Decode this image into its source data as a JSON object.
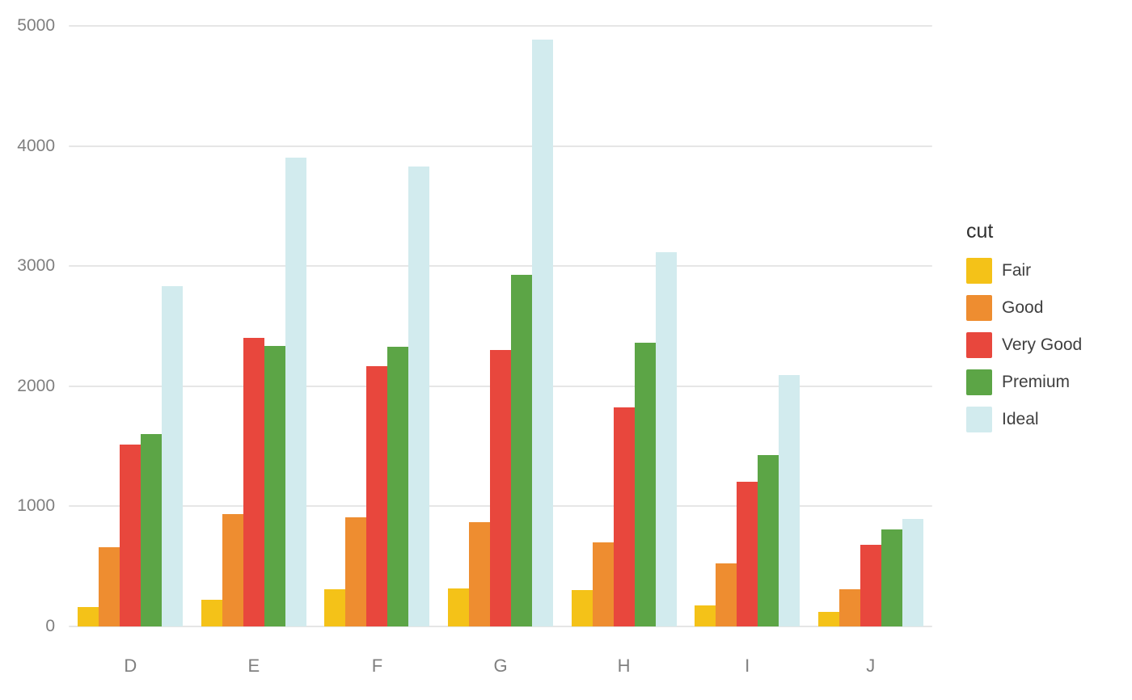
{
  "chart_data": {
    "type": "bar",
    "title": "",
    "xlabel": "",
    "ylabel": "",
    "categories": [
      "D",
      "E",
      "F",
      "G",
      "H",
      "I",
      "J"
    ],
    "series": [
      {
        "name": "Fair",
        "color": "#f4c218",
        "values": [
          163,
          224,
          312,
          314,
          303,
          175,
          119
        ]
      },
      {
        "name": "Good",
        "color": "#ee8d30",
        "values": [
          662,
          933,
          909,
          871,
          702,
          522,
          307
        ]
      },
      {
        "name": "Very Good",
        "color": "#e8473d",
        "values": [
          1513,
          2400,
          2164,
          2299,
          1824,
          1204,
          678
        ]
      },
      {
        "name": "Premium",
        "color": "#5ca546",
        "values": [
          1603,
          2337,
          2331,
          2924,
          2360,
          1428,
          808
        ]
      },
      {
        "name": "Ideal",
        "color": "#d2ebee",
        "values": [
          2834,
          3903,
          3826,
          4884,
          3115,
          2093,
          896
        ]
      }
    ],
    "ylim": [
      0,
      5000
    ],
    "yticks": [
      0,
      1000,
      2000,
      3000,
      4000,
      5000
    ],
    "grid": true,
    "legend_title": "cut",
    "legend_position": "right",
    "colors": {
      "background": "#ffffff",
      "gridline": "#e6e6e6",
      "axis_text": "#7f7f7f"
    }
  }
}
